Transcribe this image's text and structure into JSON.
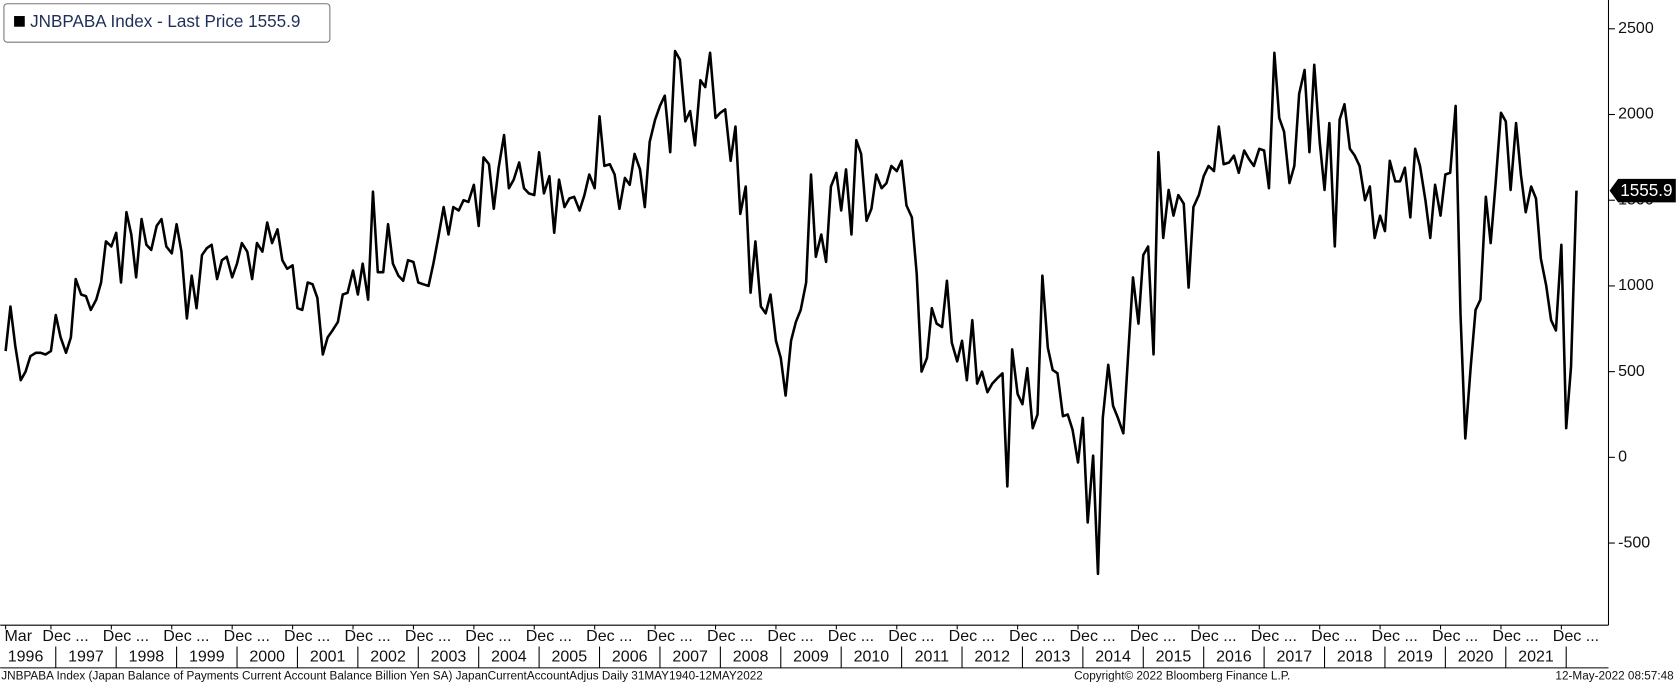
{
  "chart_data": {
    "type": "line",
    "legend": "top-left",
    "series": [
      {
        "name": "JNBPABA Index - Last Price 1555.9",
        "color": "#000000",
        "x": [
          1996.17,
          1996.25,
          1996.33,
          1996.42,
          1996.5,
          1996.58,
          1996.67,
          1996.75,
          1996.83,
          1996.92,
          1997,
          1997.08,
          1997.17,
          1997.25,
          1997.33,
          1997.42,
          1997.5,
          1997.58,
          1997.67,
          1997.75,
          1997.83,
          1997.92,
          1998,
          1998.08,
          1998.17,
          1998.25,
          1998.33,
          1998.42,
          1998.5,
          1998.58,
          1998.67,
          1998.75,
          1998.83,
          1998.92,
          1999,
          1999.08,
          1999.17,
          1999.25,
          1999.33,
          1999.42,
          1999.5,
          1999.58,
          1999.67,
          1999.75,
          1999.83,
          1999.92,
          2000,
          2000.08,
          2000.17,
          2000.25,
          2000.33,
          2000.42,
          2000.5,
          2000.58,
          2000.67,
          2000.75,
          2000.83,
          2000.92,
          2001,
          2001.08,
          2001.17,
          2001.25,
          2001.33,
          2001.42,
          2001.5,
          2001.58,
          2001.67,
          2001.75,
          2001.83,
          2001.92,
          2002,
          2002.08,
          2002.17,
          2002.25,
          2002.33,
          2002.42,
          2002.5,
          2002.58,
          2002.67,
          2002.75,
          2002.83,
          2002.92,
          2003,
          2003.08,
          2003.17,
          2003.25,
          2003.33,
          2003.42,
          2003.5,
          2003.58,
          2003.67,
          2003.75,
          2003.83,
          2003.92,
          2004,
          2004.08,
          2004.17,
          2004.25,
          2004.33,
          2004.42,
          2004.5,
          2004.58,
          2004.67,
          2004.75,
          2004.83,
          2004.92,
          2005,
          2005.08,
          2005.17,
          2005.25,
          2005.33,
          2005.42,
          2005.5,
          2005.58,
          2005.67,
          2005.75,
          2005.83,
          2005.92,
          2006,
          2006.08,
          2006.17,
          2006.25,
          2006.33,
          2006.42,
          2006.5,
          2006.58,
          2006.67,
          2006.75,
          2006.83,
          2006.92,
          2007,
          2007.08,
          2007.17,
          2007.25,
          2007.33,
          2007.42,
          2007.5,
          2007.58,
          2007.67,
          2007.75,
          2007.83,
          2007.92,
          2008,
          2008.08,
          2008.17,
          2008.25,
          2008.33,
          2008.42,
          2008.5,
          2008.58,
          2008.67,
          2008.75,
          2008.83,
          2008.92,
          2009,
          2009.08,
          2009.17,
          2009.25,
          2009.33,
          2009.42,
          2009.5,
          2009.58,
          2009.67,
          2009.75,
          2009.83,
          2009.92,
          2010,
          2010.08,
          2010.17,
          2010.25,
          2010.33,
          2010.42,
          2010.5,
          2010.58,
          2010.67,
          2010.75,
          2010.83,
          2010.92,
          2011,
          2011.08,
          2011.17,
          2011.25,
          2011.33,
          2011.42,
          2011.5,
          2011.58,
          2011.67,
          2011.75,
          2011.83,
          2011.92,
          2012,
          2012.08,
          2012.17,
          2012.25,
          2012.33,
          2012.42,
          2012.5,
          2012.58,
          2012.67,
          2012.75,
          2012.83,
          2012.92,
          2013,
          2013.08,
          2013.17,
          2013.25,
          2013.33,
          2013.42,
          2013.5,
          2013.58,
          2013.67,
          2013.75,
          2013.83,
          2013.92,
          2014,
          2014.08,
          2014.17,
          2014.25,
          2014.33,
          2014.42,
          2014.5,
          2014.58,
          2014.67,
          2014.75,
          2014.83,
          2014.92,
          2015,
          2015.08,
          2015.17,
          2015.25,
          2015.33,
          2015.42,
          2015.5,
          2015.58,
          2015.67,
          2015.75,
          2015.83,
          2015.92,
          2016,
          2016.08,
          2016.17,
          2016.25,
          2016.33,
          2016.42,
          2016.5,
          2016.58,
          2016.67,
          2016.75,
          2016.83,
          2016.92,
          2017,
          2017.08,
          2017.17,
          2017.25,
          2017.33,
          2017.42,
          2017.5,
          2017.58,
          2017.67,
          2017.75,
          2017.83,
          2017.92,
          2018,
          2018.08,
          2018.17,
          2018.25,
          2018.33,
          2018.42,
          2018.5,
          2018.58,
          2018.67,
          2018.75,
          2018.83,
          2018.92,
          2019,
          2019.08,
          2019.17,
          2019.25,
          2019.33,
          2019.42,
          2019.5,
          2019.58,
          2019.67,
          2019.75,
          2019.83,
          2019.92,
          2020,
          2020.08,
          2020.17,
          2020.25,
          2020.33,
          2020.42,
          2020.5,
          2020.58,
          2020.67,
          2020.75,
          2020.83,
          2020.92,
          2021,
          2021.08,
          2021.17,
          2021.25,
          2021.33,
          2021.42,
          2021.5,
          2021.58,
          2021.67,
          2021.75,
          2021.83,
          2021.92,
          2022,
          2022.08,
          2022.17
        ],
        "values": [
          620,
          880,
          650,
          450,
          500,
          590,
          610,
          610,
          600,
          620,
          830,
          700,
          610,
          700,
          1040,
          950,
          940,
          860,
          920,
          1020,
          1260,
          1230,
          1310,
          1020,
          1430,
          1300,
          1050,
          1390,
          1240,
          1210,
          1350,
          1390,
          1230,
          1190,
          1360,
          1200,
          810,
          1060,
          870,
          1180,
          1220,
          1240,
          1040,
          1150,
          1170,
          1050,
          1130,
          1250,
          1200,
          1040,
          1250,
          1200,
          1370,
          1250,
          1330,
          1150,
          1100,
          1120,
          870,
          860,
          1020,
          1010,
          930,
          600,
          700,
          740,
          790,
          950,
          960,
          1090,
          950,
          1130,
          920,
          1550,
          1080,
          1080,
          1360,
          1130,
          1060,
          1030,
          1150,
          1140,
          1020,
          1010,
          1000,
          1130,
          1280,
          1460,
          1300,
          1460,
          1440,
          1500,
          1490,
          1590,
          1350,
          1750,
          1710,
          1450,
          1690,
          1880,
          1570,
          1620,
          1720,
          1570,
          1540,
          1530,
          1780,
          1540,
          1640,
          1310,
          1620,
          1460,
          1510,
          1520,
          1440,
          1530,
          1650,
          1570,
          1990,
          1700,
          1710,
          1650,
          1450,
          1630,
          1590,
          1770,
          1680,
          1460,
          1840,
          1970,
          2050,
          2110,
          1780,
          2370,
          2320,
          1960,
          2020,
          1820,
          2200,
          2160,
          2360,
          1980,
          2010,
          2030,
          1730,
          1930,
          1420,
          1580,
          960,
          1260,
          880,
          840,
          950,
          680,
          580,
          360,
          680,
          790,
          860,
          1020,
          1650,
          1170,
          1300,
          1140,
          1580,
          1660,
          1440,
          1680,
          1300,
          1850,
          1770,
          1380,
          1450,
          1650,
          1570,
          1600,
          1700,
          1670,
          1730,
          1470,
          1400,
          1070,
          500,
          580,
          870,
          780,
          760,
          1030,
          670,
          560,
          680,
          450,
          800,
          430,
          500,
          380,
          430,
          460,
          490,
          -170,
          630,
          370,
          310,
          520,
          170,
          250,
          1060,
          640,
          510,
          490,
          240,
          250,
          160,
          -30,
          230,
          -380,
          10,
          -680,
          230,
          540,
          300,
          230,
          140,
          600,
          1050,
          780,
          1180,
          1230,
          600,
          1780,
          1280,
          1560,
          1410,
          1530,
          1480,
          990,
          1460,
          1530,
          1640,
          1700,
          1670,
          1930,
          1710,
          1720,
          1760,
          1660,
          1790,
          1740,
          1700,
          1800,
          1790,
          1570,
          2360,
          1980,
          1900,
          1600,
          1700,
          2120,
          2260,
          1780,
          2290,
          1840,
          1560,
          1950,
          1230,
          1970,
          2060,
          1800,
          1760,
          1700,
          1500,
          1580,
          1280,
          1410,
          1320,
          1730,
          1610,
          1610,
          1690,
          1400,
          1800,
          1700,
          1500,
          1280,
          1590,
          1410,
          1650,
          1660,
          2050,
          840,
          110,
          530,
          860,
          920,
          1520,
          1250,
          1590,
          2010,
          1960,
          1560,
          1950,
          1650,
          1430,
          1580,
          1510,
          1160,
          1000,
          800,
          740,
          1240,
          170,
          530,
          1555.9
        ]
      }
    ],
    "xlim": [
      1996.08,
      2022.7
    ],
    "ylim": [
      -979,
      2668
    ],
    "yticks": [
      -500,
      0,
      500,
      1000,
      1500,
      2000,
      2500
    ],
    "xticks": [
      {
        "value": 1996.17,
        "label": "Mar"
      },
      {
        "value": 1996.92,
        "label": "Dec ..."
      },
      {
        "value": 1997.92,
        "label": "Dec ..."
      },
      {
        "value": 1998.92,
        "label": "Dec ..."
      },
      {
        "value": 1999.92,
        "label": "Dec ..."
      },
      {
        "value": 2000.92,
        "label": "Dec ..."
      },
      {
        "value": 2001.92,
        "label": "Dec ..."
      },
      {
        "value": 2002.92,
        "label": "Dec ..."
      },
      {
        "value": 2003.92,
        "label": "Dec ..."
      },
      {
        "value": 2004.92,
        "label": "Dec ..."
      },
      {
        "value": 2005.92,
        "label": "Dec ..."
      },
      {
        "value": 2006.92,
        "label": "Dec ..."
      },
      {
        "value": 2007.92,
        "label": "Dec ..."
      },
      {
        "value": 2008.92,
        "label": "Dec ..."
      },
      {
        "value": 2009.92,
        "label": "Dec ..."
      },
      {
        "value": 2010.92,
        "label": "Dec ..."
      },
      {
        "value": 2011.92,
        "label": "Dec ..."
      },
      {
        "value": 2012.92,
        "label": "Dec ..."
      },
      {
        "value": 2013.92,
        "label": "Dec ..."
      },
      {
        "value": 2014.92,
        "label": "Dec ..."
      },
      {
        "value": 2015.92,
        "label": "Dec ..."
      },
      {
        "value": 2016.92,
        "label": "Dec ..."
      },
      {
        "value": 2017.92,
        "label": "Dec ..."
      },
      {
        "value": 2018.92,
        "label": "Dec ..."
      },
      {
        "value": 2019.92,
        "label": "Dec ..."
      },
      {
        "value": 2020.92,
        "label": "Dec ..."
      },
      {
        "value": 2021.92,
        "label": "Dec ..."
      }
    ],
    "year_ticks": [
      {
        "value": 1996.5,
        "label": "1996"
      },
      {
        "value": 1997.5,
        "label": "1997"
      },
      {
        "value": 1998.5,
        "label": "1998"
      },
      {
        "value": 1999.5,
        "label": "1999"
      },
      {
        "value": 2000.5,
        "label": "2000"
      },
      {
        "value": 2001.5,
        "label": "2001"
      },
      {
        "value": 2002.5,
        "label": "2002"
      },
      {
        "value": 2003.5,
        "label": "2003"
      },
      {
        "value": 2004.5,
        "label": "2004"
      },
      {
        "value": 2005.5,
        "label": "2005"
      },
      {
        "value": 2006.5,
        "label": "2006"
      },
      {
        "value": 2007.5,
        "label": "2007"
      },
      {
        "value": 2008.5,
        "label": "2008"
      },
      {
        "value": 2009.5,
        "label": "2009"
      },
      {
        "value": 2010.5,
        "label": "2010"
      },
      {
        "value": 2011.5,
        "label": "2011"
      },
      {
        "value": 2012.5,
        "label": "2012"
      },
      {
        "value": 2013.5,
        "label": "2013"
      },
      {
        "value": 2014.5,
        "label": "2014"
      },
      {
        "value": 2015.5,
        "label": "2015"
      },
      {
        "value": 2016.5,
        "label": "2016"
      },
      {
        "value": 2017.5,
        "label": "2017"
      },
      {
        "value": 2018.5,
        "label": "2018"
      },
      {
        "value": 2019.5,
        "label": "2019"
      },
      {
        "value": 2020.5,
        "label": "2020"
      },
      {
        "value": 2021.5,
        "label": "2021"
      }
    ],
    "footer": {
      "description": "JNBPABA Index (Japan Balance of Payments Current Account Balance Billion Yen SA) JapanCurrentAccountAdjus  Daily 31MAY1940-12MAY2022",
      "copyright": "Copyright© 2022 Bloomberg Finance L.P.",
      "timestamp": "12-May-2022 08:57:48"
    }
  }
}
